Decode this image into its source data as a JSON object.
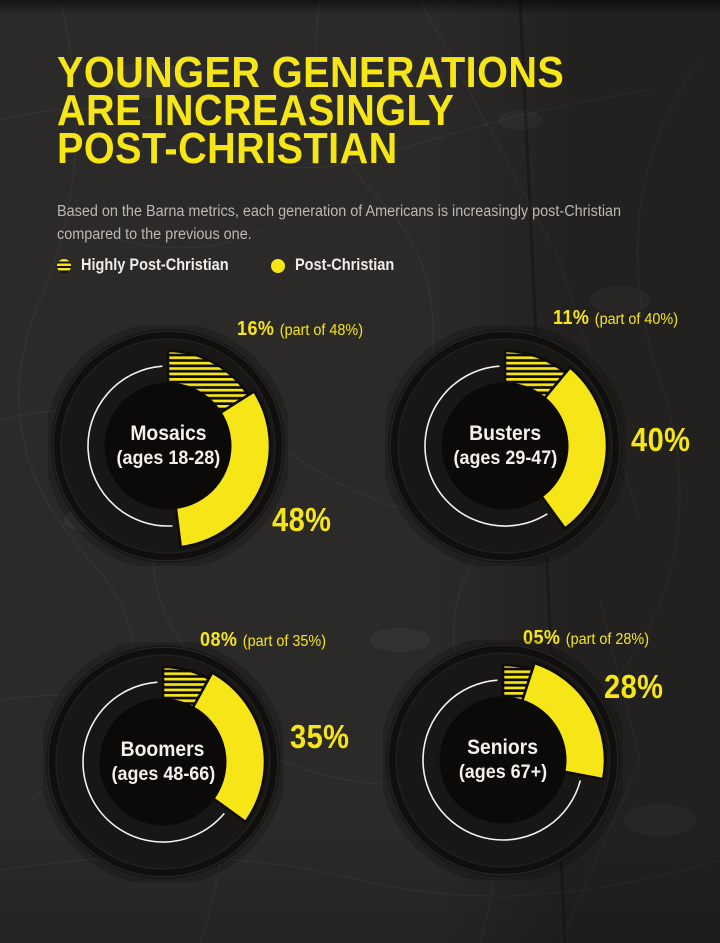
{
  "page": {
    "background": "#2c2a28",
    "accent_yellow": "#f7e617",
    "text_light": "#f4f1ea",
    "text_muted": "#bcb9b2"
  },
  "header": {
    "title_lines": [
      "YOUNGER GENERATIONS",
      "ARE INCREASINGLY",
      "POST-CHRISTIAN"
    ],
    "subtitle_lines": [
      "Based on the Barna metrics, each generation of Americans is increasingly post-Christian",
      "compared to the previous one."
    ]
  },
  "legend": {
    "items": [
      {
        "label": "Highly Post-Christian",
        "swatch": "striped-yellow"
      },
      {
        "label": "Post-Christian",
        "swatch": "solid-yellow"
      }
    ]
  },
  "chart_data": {
    "type": "donut",
    "title": "Younger generations are increasingly post-Christian",
    "units": "percent of each generation",
    "start_angle_deg": 0,
    "direction": "clockwise",
    "legend_entries": [
      "Highly Post-Christian",
      "Post-Christian"
    ],
    "charts": [
      {
        "name": "Mosaics",
        "ages": "(ages 18-28)",
        "post_christian_pct": 48,
        "highly_post_christian_pct": 16,
        "total_label": "48%",
        "highly_label": "16%",
        "highly_note": "(part of 48%)"
      },
      {
        "name": "Busters",
        "ages": "(ages 29-47)",
        "post_christian_pct": 40,
        "highly_post_christian_pct": 11,
        "total_label": "40%",
        "highly_label": "11%",
        "highly_note": "(part of 40%)"
      },
      {
        "name": "Boomers",
        "ages": "(ages 48-66)",
        "post_christian_pct": 35,
        "highly_post_christian_pct": 8,
        "total_label": "35%",
        "highly_label": "08%",
        "highly_note": "(part of 35%)"
      },
      {
        "name": "Seniors",
        "ages": "(ages 67+)",
        "post_christian_pct": 28,
        "highly_post_christian_pct": 5,
        "total_label": "28%",
        "highly_label": "05%",
        "highly_note": "(part of 28%)"
      }
    ]
  }
}
